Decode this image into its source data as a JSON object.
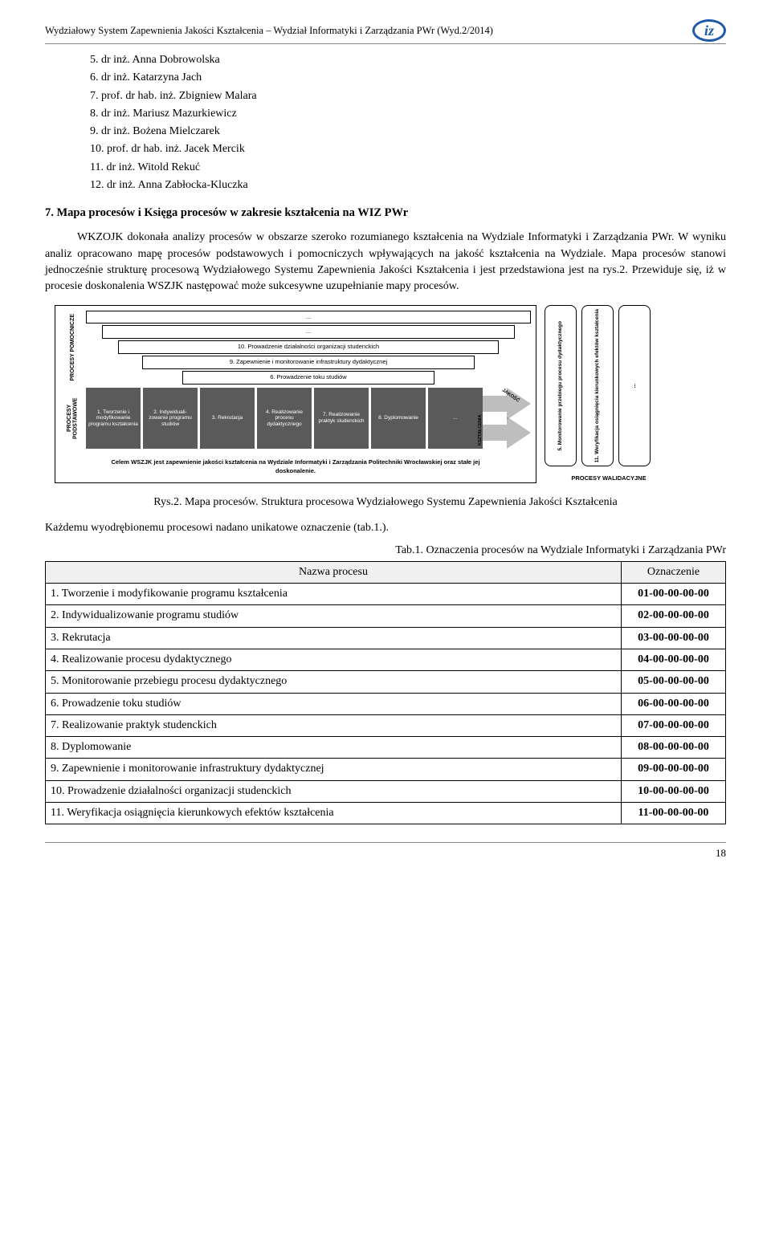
{
  "header": {
    "text": "Wydziałowy System Zapewnienia Jakości Kształcenia – Wydział Informatyki i Zarządzania PWr    (Wyd.2/2014)",
    "logo_text": "iz",
    "logo_color": "#1e5aa8"
  },
  "people": [
    "5.   dr inż. Anna Dobrowolska",
    "6.   dr inż. Katarzyna Jach",
    "7.   prof. dr hab. inż. Zbigniew Malara",
    "8.   dr inż. Mariusz Mazurkiewicz",
    "9.   dr inż. Bożena Mielczarek",
    "10.  prof. dr hab. inż. Jacek Mercik",
    "11.  dr inż. Witold Rekuć",
    "12.  dr inż. Anna Zabłocka-Kluczka"
  ],
  "section7_title": "7. Mapa procesów i Księga procesów w zakresie kształcenia na WIZ PWr",
  "paragraph": "WKZOJK dokonała analizy procesów w obszarze szeroko rozumianego kształcenia na Wydziale Informatyki i Zarządzania PWr. W wyniku analiz opracowano mapę procesów podstawowych i pomocniczych wpływających na jakość kształcenia na Wydziale. Mapa procesów stanowi jednocześnie strukturę procesową Wydziałowego Systemu Zapewnienia Jakości Kształcenia i jest przedstawiona jest na rys.2. Przewiduje się, iż w procesie doskonalenia WSZJK następować może sukcesywne uzupełnianie mapy procesów.",
  "diagram": {
    "pomoc_label": "PROCESY POMOCNICZE",
    "podst_label": "PROCESY PODSTAWOWE",
    "pomoc_bars": [
      "...",
      "...",
      "10. Prowadzenie działalności organizacji studenckich",
      "9. Zapewnienie i monitorowanie infrastruktury dydaktycznej",
      "6. Prowadzenie toku studiów"
    ],
    "podst_boxes": [
      "1. Tworzenie i modyfikowanie programu kształcenia",
      "2. Indywiduali-zowanie programu studiów",
      "3. Rekrutacja",
      "4. Realizowanie procesu dydaktycznego",
      "7. Realizowanie praktyk studenckich",
      "8. Dyplomowanie",
      "..."
    ],
    "arrow_top": "JAKOŚĆ",
    "arrow_bot": "KSZTAŁCENIA",
    "cel": "Celem WSZJK jest zapewnienie jakości kształcenia na Wydziale Informatyki i Zarządzania Politechniki Wrocławskiej oraz stałe jej doskonalenie.",
    "valid_boxes": [
      "5. Monitorowanie przebiegu procesu dydaktycznego",
      "11. Weryfikacja osiągnięcia kierunkowych efektów kształcenia",
      "..."
    ],
    "valid_label": "PROCESY WALIDACYJNE"
  },
  "fig_caption": "Rys.2. Mapa procesów. Struktura procesowa Wydziałowego Systemu Zapewnienia Jakości Kształcenia",
  "pre_table_text": "Każdemu wyodrębionemu procesowi nadano unikatowe oznaczenie (tab.1.).",
  "tab_caption": "Tab.1. Oznaczenia procesów na Wydziale Informatyki i Zarządzania PWr",
  "table": {
    "h1": "Nazwa procesu",
    "h2": "Oznaczenie",
    "rows": [
      [
        "1. Tworzenie i modyfikowanie programu kształcenia",
        "01-00-00-00-00"
      ],
      [
        "2. Indywidualizowanie programu studiów",
        "02-00-00-00-00"
      ],
      [
        "3. Rekrutacja",
        "03-00-00-00-00"
      ],
      [
        "4. Realizowanie procesu dydaktycznego",
        "04-00-00-00-00"
      ],
      [
        "5. Monitorowanie przebiegu procesu dydaktycznego",
        "05-00-00-00-00"
      ],
      [
        "6. Prowadzenie toku studiów",
        "06-00-00-00-00"
      ],
      [
        "7. Realizowanie praktyk studenckich",
        "07-00-00-00-00"
      ],
      [
        "8. Dyplomowanie",
        "08-00-00-00-00"
      ],
      [
        "9. Zapewnienie i monitorowanie infrastruktury dydaktycznej",
        "09-00-00-00-00"
      ],
      [
        "10. Prowadzenie działalności organizacji studenckich",
        "10-00-00-00-00"
      ],
      [
        "11. Weryfikacja osiągnięcia kierunkowych efektów kształcenia",
        "11-00-00-00-00"
      ]
    ]
  },
  "page_number": "18"
}
